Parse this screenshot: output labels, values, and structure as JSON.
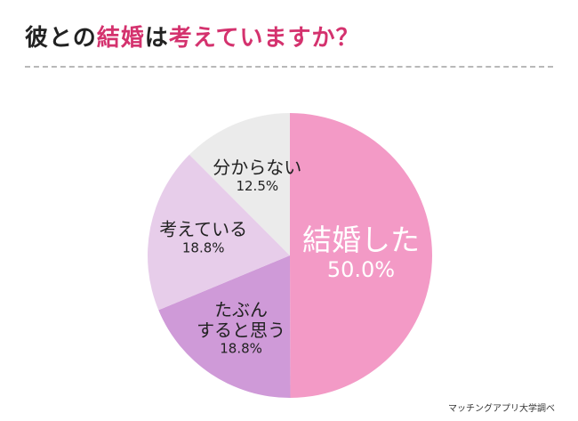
{
  "title": {
    "parts": [
      {
        "text": "彼との",
        "accent": false
      },
      {
        "text": "結婚",
        "accent": true
      },
      {
        "text": "は",
        "accent": false
      },
      {
        "text": "考えていますか？",
        "accent": true
      }
    ]
  },
  "source": "マッチングアプリ大学調べ",
  "colors": {
    "accent": "#d4326e",
    "text": "#222222"
  },
  "chart_data": {
    "type": "pie",
    "slices": [
      {
        "label_lines": [
          "結婚した"
        ],
        "value": 50.0,
        "value_label": "50.0%",
        "color": "#f39ac6",
        "text_color": "#ffffff"
      },
      {
        "label_lines": [
          "たぶん",
          "すると思う"
        ],
        "value": 18.8,
        "value_label": "18.8%",
        "color": "#cf9ad8",
        "text_color": "#222222"
      },
      {
        "label_lines": [
          "考えている"
        ],
        "value": 18.8,
        "value_label": "18.8%",
        "color": "#e7cdea",
        "text_color": "#222222"
      },
      {
        "label_lines": [
          "分からない"
        ],
        "value": 12.5,
        "value_label": "12.5%",
        "color": "#ebebeb",
        "text_color": "#222222"
      }
    ],
    "start_angle": "12 o'clock",
    "direction": "clockwise",
    "legend": "none"
  }
}
